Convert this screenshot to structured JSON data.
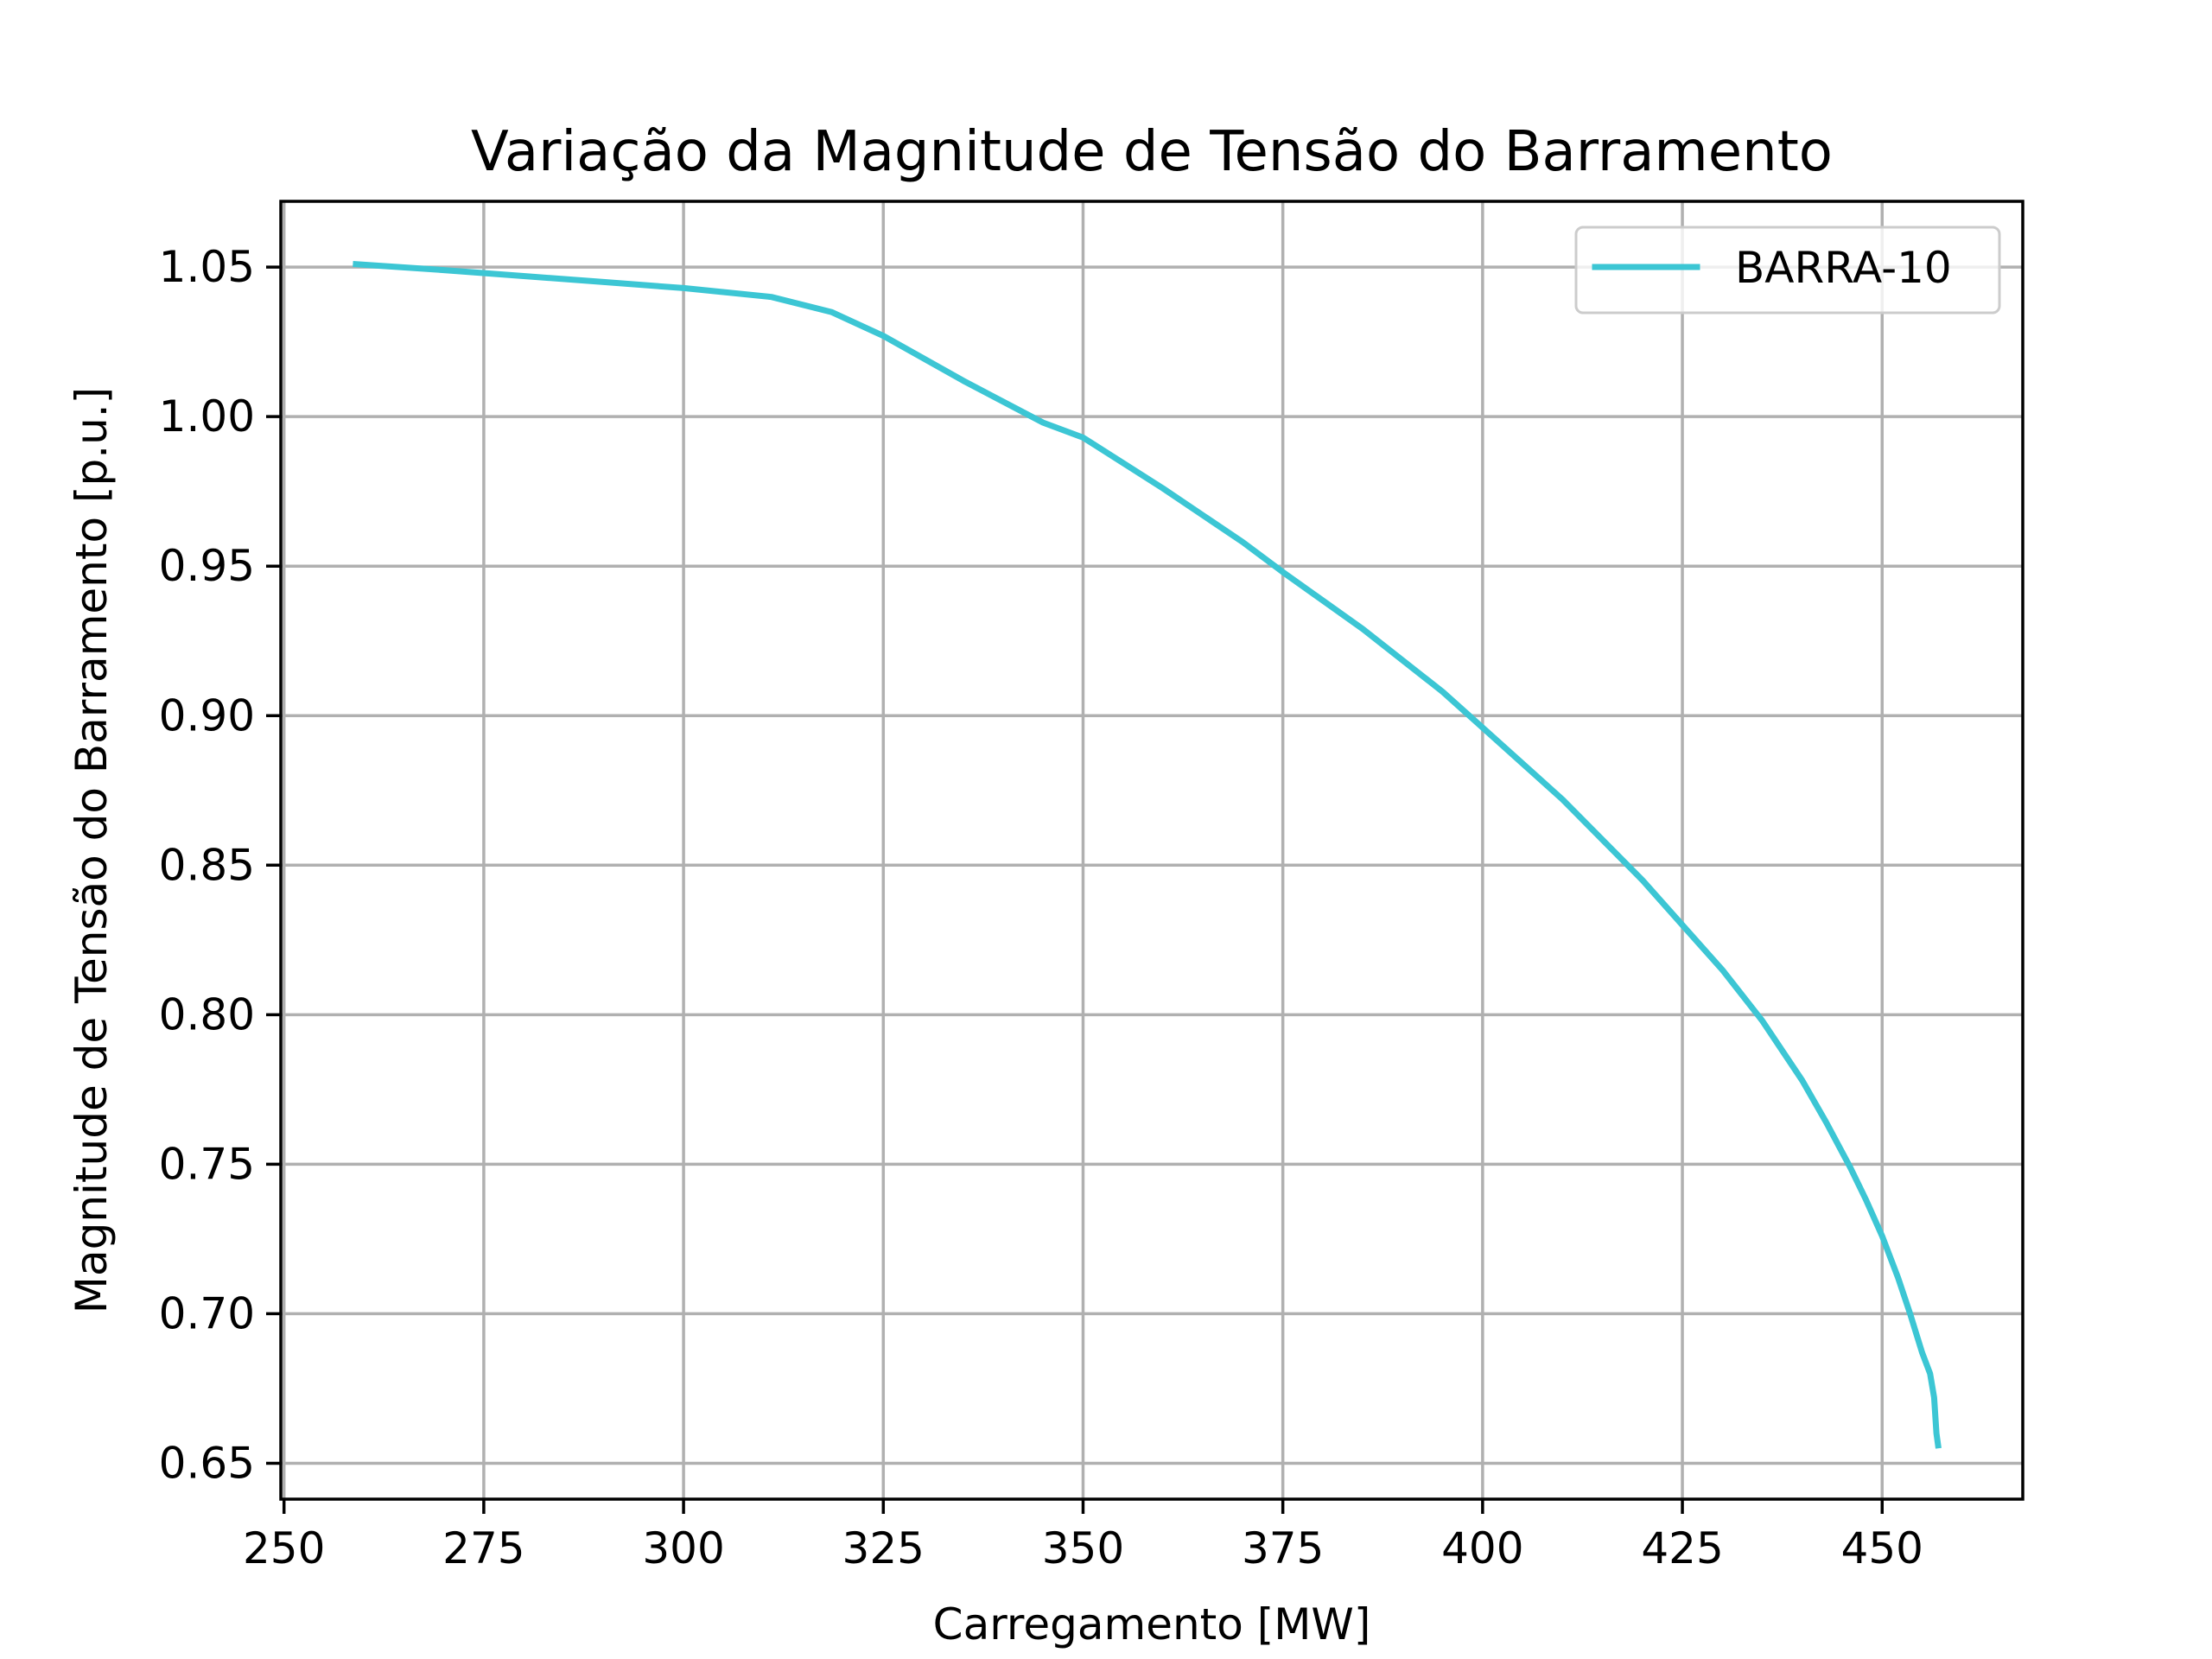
{
  "chart_data": {
    "type": "line",
    "title": "Variação da Magnitude de Tensão do Barramento",
    "xlabel": "Carregamento [MW]",
    "ylabel": "Magnitude de Tensão do Barramento [p.u.]",
    "xlim": [
      249.6,
      467.6
    ],
    "ylim": [
      0.638,
      1.072
    ],
    "xticks": [
      250,
      275,
      300,
      325,
      350,
      375,
      400,
      425,
      450
    ],
    "xtick_labels": [
      "250",
      "275",
      "300",
      "325",
      "350",
      "375",
      "400",
      "425",
      "450"
    ],
    "yticks": [
      0.65,
      0.7,
      0.75,
      0.8,
      0.85,
      0.9,
      0.95,
      1.0,
      1.05
    ],
    "ytick_labels": [
      "0.65",
      "0.70",
      "0.75",
      "0.80",
      "0.85",
      "0.90",
      "0.95",
      "1.00",
      "1.05"
    ],
    "grid": true,
    "legend_position": "upper-right",
    "series": [
      {
        "name": "BARRA-10",
        "color": "#3cc6d4",
        "x": [
          259.0,
          270.0,
          280.0,
          290.0,
          300.0,
          311.0,
          318.5,
          325.0,
          335.0,
          345.0,
          350.0,
          360.0,
          370.0,
          375.0,
          385.0,
          395.0,
          400.0,
          410.0,
          420.0,
          425.0,
          430.0,
          435.0,
          440.0,
          443.0,
          446.0,
          448.0,
          450.0,
          452.0,
          453.5,
          455.0,
          456.0,
          456.5,
          456.8,
          457.0
        ],
        "y": [
          1.051,
          1.049,
          1.047,
          1.045,
          1.043,
          1.04,
          1.035,
          1.027,
          1.012,
          0.998,
          0.993,
          0.976,
          0.958,
          0.948,
          0.929,
          0.908,
          0.896,
          0.872,
          0.845,
          0.83,
          0.815,
          0.798,
          0.778,
          0.764,
          0.749,
          0.738,
          0.726,
          0.712,
          0.7,
          0.687,
          0.68,
          0.672,
          0.66,
          0.656
        ]
      }
    ]
  }
}
